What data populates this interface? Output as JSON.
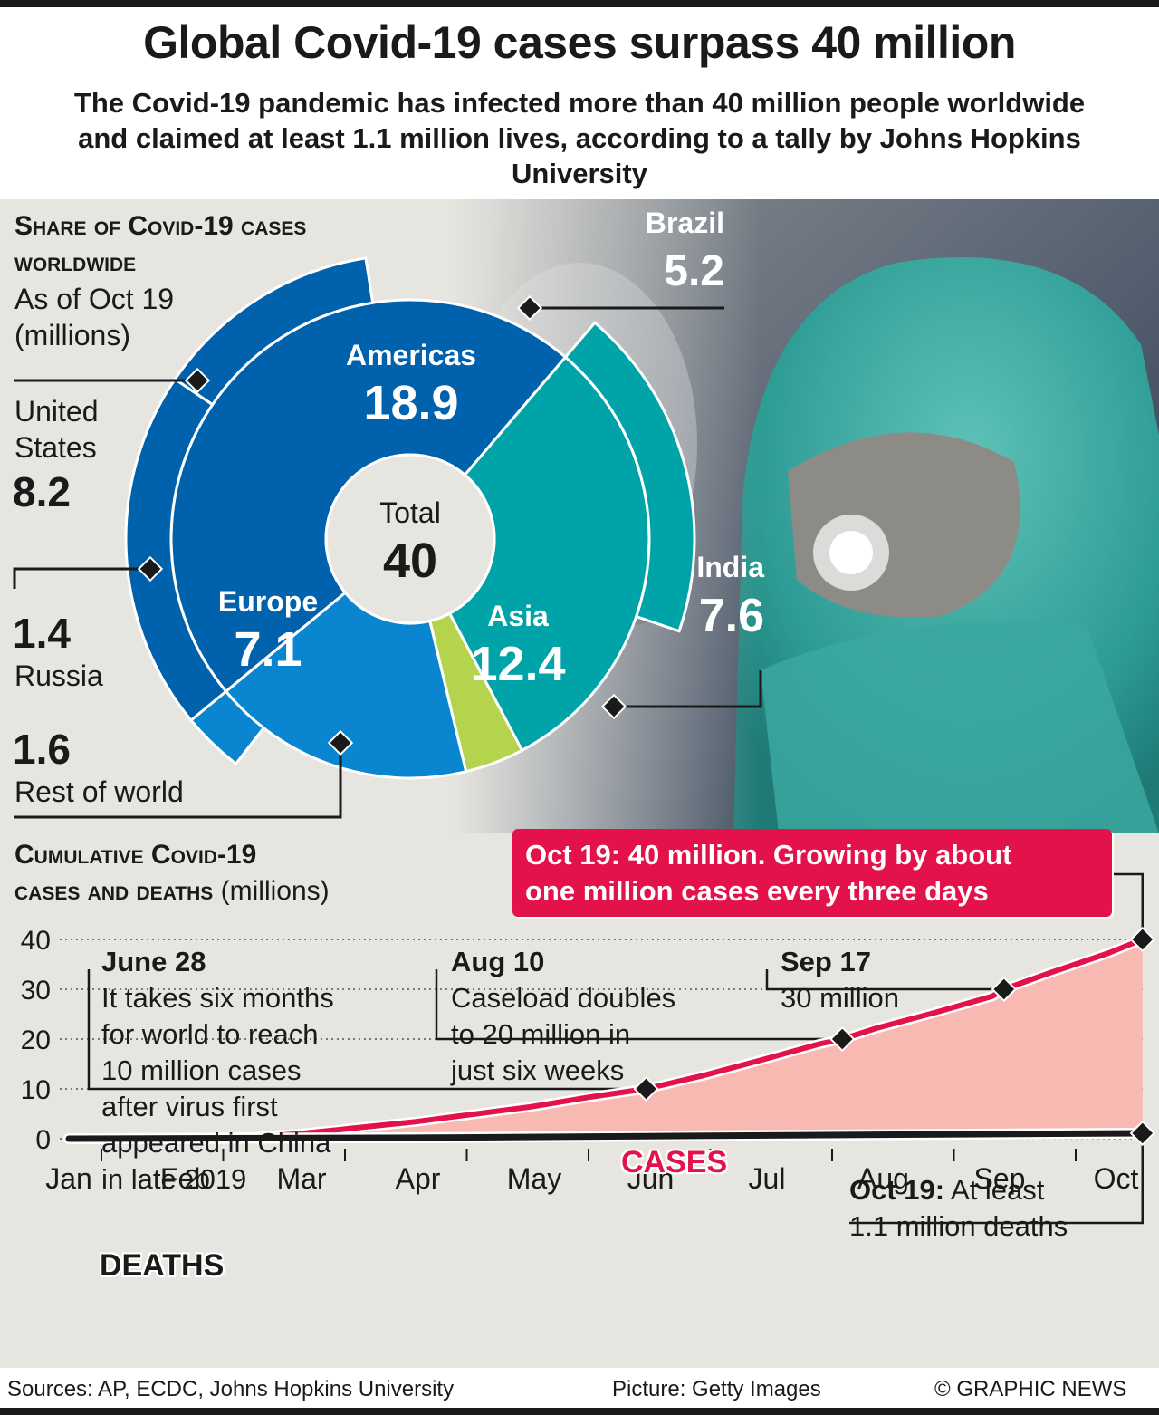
{
  "header": {
    "title": "Global Covid-19 cases surpass 40 million",
    "subtitle": "The Covid-19 pandemic has infected more than 40 million people worldwide and claimed at least 1.1 million lives, according to a tally by Johns Hopkins University"
  },
  "share_section": {
    "heading_line1": "Share of Covid-19 cases",
    "heading_line2": "worldwide",
    "date_line": "As of Oct 19",
    "units": "(millions)"
  },
  "cumulative_section": {
    "heading_line1": "Cumulative Covid-19",
    "heading_line2": "cases and deaths",
    "units": "(millions)"
  },
  "callout": {
    "line1": "Oct 19: 40 million. Growing by about",
    "line2": "one million cases every three days"
  },
  "annotations": {
    "june": {
      "date": "June 28",
      "lines": [
        "It takes six months",
        "for world to reach",
        "10 million cases",
        "after virus first",
        "appeared in China",
        "in late 2019"
      ]
    },
    "aug": {
      "date": "Aug 10",
      "lines": [
        "Caseload doubles",
        "to 20 million in",
        "just six weeks"
      ]
    },
    "sep": {
      "date": "Sep 17",
      "lines": [
        "30 million"
      ]
    },
    "oct_deaths": {
      "date": "Oct 19:",
      "line1_rest": "At least",
      "line2": "1.1 million deaths"
    }
  },
  "series_labels": {
    "cases": "CASES",
    "deaths": "DEATHS"
  },
  "footer": {
    "sources": "Sources: AP, ECDC, Johns Hopkins University",
    "picture": "Picture: Getty Images",
    "credit": "© GRAPHIC NEWS"
  },
  "colors": {
    "americas": "#0061ad",
    "europe": "#0a86d0",
    "asia": "#00a3a8",
    "rest_of_world": "#b5d44d",
    "cases_line": "#e3124a",
    "cases_fill": "#f9b9b3",
    "deaths_line": "#1a1a1a",
    "background": "#e6e5e0"
  },
  "chart_data": [
    {
      "type": "pie",
      "title": "Share of Covid-19 cases worldwide",
      "center_label": "Total",
      "center_value": "40",
      "inner_ring": [
        {
          "name": "Americas",
          "value": 18.9,
          "label": "18.9"
        },
        {
          "name": "Asia",
          "value": 12.4,
          "label": "12.4"
        },
        {
          "name": "Rest of world",
          "value": 1.6,
          "label": "1.6"
        },
        {
          "name": "Europe",
          "value": 7.1,
          "label": "7.1"
        }
      ],
      "outer_ring": [
        {
          "name": "Brazil",
          "value": 5.2,
          "label": "5.2",
          "parent": "Americas"
        },
        {
          "name": "India",
          "value": 7.6,
          "label": "7.6",
          "parent": "Asia"
        },
        {
          "name": "Russia",
          "value": 1.4,
          "label": "1.4",
          "parent": "Europe"
        },
        {
          "name": "United States",
          "value": 8.2,
          "label": "8.2",
          "parent": "Americas"
        }
      ]
    },
    {
      "type": "area",
      "title": "Cumulative Covid-19 cases and deaths (millions)",
      "x": [
        "Jan",
        "Feb",
        "Mar",
        "Apr",
        "May",
        "Jun",
        "Jul",
        "Aug",
        "Sep",
        "Oct"
      ],
      "ylim": [
        0,
        40
      ],
      "yticks": [
        0,
        10,
        20,
        30,
        40
      ],
      "series": [
        {
          "name": "CASES",
          "points": [
            [
              1.0,
              0
            ],
            [
              1.9,
              0.1
            ],
            [
              2.6,
              0.3
            ],
            [
              3.0,
              1.0
            ],
            [
              3.5,
              2.2
            ],
            [
              4.0,
              3.4
            ],
            [
              4.5,
              4.9
            ],
            [
              5.0,
              6.4
            ],
            [
              5.5,
              8.3
            ],
            [
              6.0,
              10.0
            ],
            [
              6.5,
              12.7
            ],
            [
              7.0,
              15.8
            ],
            [
              7.5,
              19.0
            ],
            [
              7.7,
              20.0
            ],
            [
              8.0,
              22.2
            ],
            [
              8.5,
              25.3
            ],
            [
              9.0,
              28.6
            ],
            [
              9.1,
              30.0
            ],
            [
              9.5,
              33.3
            ],
            [
              10.0,
              37.2
            ],
            [
              10.3,
              40.0
            ]
          ],
          "markers": [
            [
              6.0,
              10.0
            ],
            [
              7.7,
              20.0
            ],
            [
              9.1,
              30.0
            ],
            [
              10.3,
              40.0
            ]
          ]
        },
        {
          "name": "DEATHS",
          "points": [
            [
              1.0,
              0
            ],
            [
              4.0,
              0.2
            ],
            [
              6.0,
              0.5
            ],
            [
              8.0,
              0.8
            ],
            [
              10.3,
              1.1
            ]
          ],
          "markers": [
            [
              10.3,
              1.1
            ]
          ]
        }
      ]
    }
  ]
}
